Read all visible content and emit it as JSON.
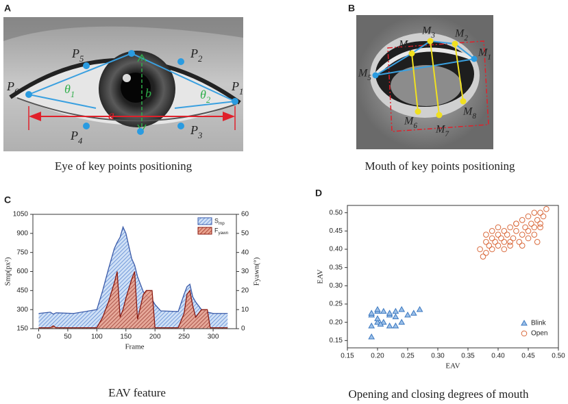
{
  "eye_panel": {
    "letter": "A",
    "caption": "Eye of key points positioning",
    "labels": [
      "P6",
      "P5",
      "P2",
      "P1",
      "P4",
      "P3",
      "θ1",
      "θ2",
      "a",
      "b"
    ]
  },
  "mouth_panel": {
    "letter": "B",
    "caption": "Mouth of key points positioning",
    "labels": [
      "M1",
      "M2",
      "M3",
      "M4",
      "M5",
      "M6",
      "M7",
      "M8"
    ]
  },
  "chart_data": [
    {
      "type": "line",
      "letter": "C",
      "caption": "EAV feature",
      "xlabel": "Frame",
      "ylabel": "Smp(px²)",
      "y2label": "Fyawn(°)",
      "x": [
        0,
        20,
        25,
        30,
        60,
        100,
        110,
        120,
        130,
        135,
        140,
        145,
        150,
        160,
        165,
        170,
        180,
        185,
        195,
        200,
        210,
        240,
        250,
        255,
        260,
        265,
        270,
        280,
        290,
        295,
        300,
        325
      ],
      "series": [
        {
          "name": "Smp",
          "color": "#3a5aa8",
          "fill": "#8fb4e6",
          "values": [
            270,
            280,
            265,
            275,
            270,
            300,
            450,
            620,
            780,
            830,
            870,
            950,
            900,
            700,
            650,
            560,
            440,
            410,
            380,
            340,
            290,
            285,
            420,
            480,
            500,
            400,
            360,
            300,
            280,
            275,
            270,
            270
          ]
        },
        {
          "name": "Fyawn",
          "color": "#8b1a10",
          "fill": "#c8553f",
          "axis": "y2",
          "values": [
            0.5,
            0.5,
            1.5,
            0.5,
            0.5,
            0.5,
            6,
            14,
            24,
            30,
            6,
            10,
            16,
            26,
            30,
            5,
            18,
            20,
            20,
            0.5,
            0.5,
            0.5,
            8,
            18,
            20,
            12,
            6,
            10,
            10,
            0.5,
            0.5,
            0.5
          ]
        }
      ],
      "xlim": [
        -10,
        340
      ],
      "xticks": [
        0,
        50,
        100,
        150,
        200,
        250,
        300
      ],
      "ylim": [
        150,
        1050
      ],
      "yticks": [
        150,
        300,
        450,
        600,
        750,
        900,
        1050
      ],
      "y2lim": [
        0,
        60
      ],
      "y2ticks": [
        0,
        10,
        20,
        30,
        40,
        50,
        60
      ],
      "legend": "upper right"
    },
    {
      "type": "scatter",
      "letter": "D",
      "caption": "Opening and closing degrees of mouth",
      "xlabel": "EAV",
      "ylabel": "EAV",
      "series": [
        {
          "name": "Blink",
          "color": "#3b78c0",
          "marker": "triangle",
          "x": [
            0.19,
            0.19,
            0.19,
            0.2,
            0.2,
            0.2,
            0.2,
            0.21,
            0.21,
            0.22,
            0.22,
            0.22,
            0.23,
            0.23,
            0.23,
            0.24,
            0.24,
            0.25,
            0.26,
            0.27,
            0.19,
            0.205
          ],
          "values": [
            0.16,
            0.19,
            0.22,
            0.2,
            0.23,
            0.21,
            0.235,
            0.2,
            0.23,
            0.19,
            0.22,
            0.225,
            0.19,
            0.23,
            0.215,
            0.2,
            0.235,
            0.22,
            0.225,
            0.235,
            0.225,
            0.195
          ]
        },
        {
          "name": "Open",
          "color": "#d9683a",
          "marker": "circle",
          "x": [
            0.37,
            0.375,
            0.38,
            0.38,
            0.385,
            0.39,
            0.39,
            0.395,
            0.4,
            0.4,
            0.405,
            0.41,
            0.41,
            0.415,
            0.42,
            0.42,
            0.425,
            0.43,
            0.43,
            0.435,
            0.44,
            0.44,
            0.445,
            0.45,
            0.45,
            0.455,
            0.46,
            0.46,
            0.465,
            0.47,
            0.47,
            0.475,
            0.48,
            0.38,
            0.39,
            0.4,
            0.41,
            0.42,
            0.43,
            0.44,
            0.45,
            0.46,
            0.465,
            0.47
          ],
          "values": [
            0.4,
            0.38,
            0.42,
            0.39,
            0.41,
            0.43,
            0.4,
            0.42,
            0.44,
            0.41,
            0.43,
            0.45,
            0.42,
            0.44,
            0.46,
            0.41,
            0.43,
            0.45,
            0.47,
            0.42,
            0.48,
            0.44,
            0.46,
            0.49,
            0.45,
            0.47,
            0.5,
            0.46,
            0.48,
            0.5,
            0.47,
            0.49,
            0.51,
            0.44,
            0.45,
            0.46,
            0.4,
            0.42,
            0.47,
            0.41,
            0.43,
            0.44,
            0.42,
            0.46
          ]
        }
      ],
      "xlim": [
        0.15,
        0.5
      ],
      "xticks": [
        0.15,
        {
          "value": 0.2,
          "label": "0.20"
        },
        0.25,
        {
          "value": 0.3,
          "label": "0.30"
        },
        0.35,
        {
          "value": 0.4,
          "label": "0.40"
        },
        0.45,
        {
          "value": 0.5,
          "label": "0.50"
        }
      ],
      "ylim": [
        0.13,
        0.52
      ],
      "yticks": [
        0.15,
        {
          "value": 0.2,
          "label": "0.20"
        },
        0.25,
        {
          "value": 0.3,
          "label": "0.30"
        },
        0.35,
        {
          "value": 0.4,
          "label": "0.40"
        },
        0.45,
        {
          "value": 0.5,
          "label": "0.50"
        }
      ],
      "legend": "lower right"
    }
  ]
}
